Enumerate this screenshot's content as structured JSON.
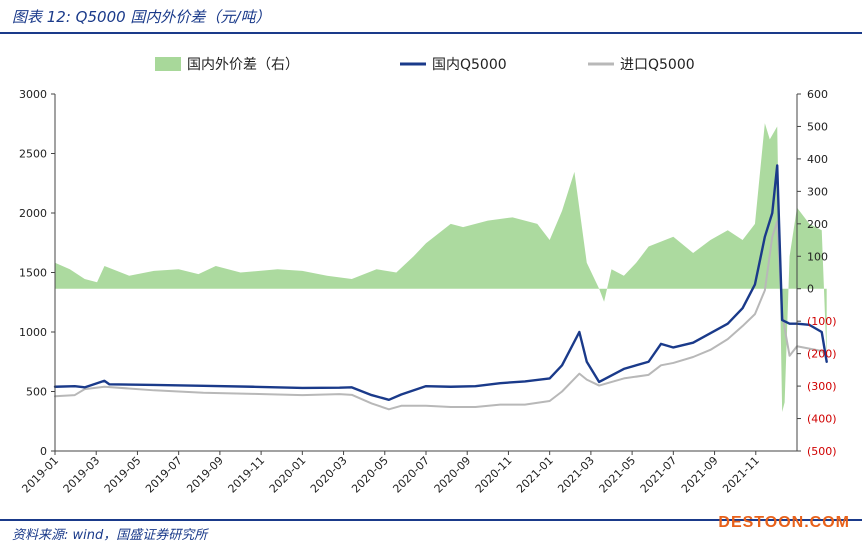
{
  "header": {
    "title": "图表 12:  Q5000 国内外价差（元/吨）"
  },
  "footer": {
    "source": "资料来源:  wind，国盛证券研究所",
    "watermark": "DESTOON.COM"
  },
  "chart_data": {
    "type": "line",
    "title": "图表 12:  Q5000 国内外价差（元/吨）",
    "legend": {
      "placement": "top",
      "entries": [
        "国内外价差（右）",
        "国内Q5000",
        "进口Q5000"
      ]
    },
    "colors": {
      "spread": "#a8d89a",
      "domestic": "#1a3a8a",
      "import": "#b8b8b8",
      "negative_tick": "#d00000"
    },
    "ylim_left": [
      0,
      3000
    ],
    "ylim_right": [
      -500,
      600
    ],
    "yticks_left": [
      "0",
      "500",
      "1000",
      "1500",
      "2000",
      "2500",
      "3000"
    ],
    "yticks_right": [
      "(500)",
      "(400)",
      "(300)",
      "(200)",
      "(100)",
      "0",
      "100",
      "200",
      "300",
      "400",
      "500",
      "600"
    ],
    "xticks": [
      "2019-01",
      "2019-03",
      "2019-05",
      "2019-07",
      "2019-09",
      "2019-11",
      "2020-01",
      "2020-03",
      "2020-05",
      "2020-07",
      "2020-09",
      "2020-11",
      "2021-01",
      "2021-03",
      "2021-05",
      "2021-07",
      "2021-09",
      "2021-11"
    ],
    "x_range": [
      2019.0,
      2022.0
    ],
    "series": [
      {
        "name": "国内外价差（右）",
        "axis": "right",
        "kind": "area",
        "points": [
          [
            2019.0,
            80
          ],
          [
            2019.06,
            60
          ],
          [
            2019.12,
            30
          ],
          [
            2019.17,
            20
          ],
          [
            2019.2,
            70
          ],
          [
            2019.3,
            40
          ],
          [
            2019.4,
            55
          ],
          [
            2019.5,
            60
          ],
          [
            2019.58,
            45
          ],
          [
            2019.65,
            70
          ],
          [
            2019.75,
            50
          ],
          [
            2019.9,
            60
          ],
          [
            2020.0,
            55
          ],
          [
            2020.1,
            40
          ],
          [
            2020.2,
            30
          ],
          [
            2020.3,
            60
          ],
          [
            2020.38,
            50
          ],
          [
            2020.45,
            100
          ],
          [
            2020.5,
            140
          ],
          [
            2020.6,
            200
          ],
          [
            2020.65,
            190
          ],
          [
            2020.75,
            210
          ],
          [
            2020.85,
            220
          ],
          [
            2020.95,
            200
          ],
          [
            2021.0,
            150
          ],
          [
            2021.05,
            240
          ],
          [
            2021.1,
            360
          ],
          [
            2021.15,
            80
          ],
          [
            2021.2,
            0
          ],
          [
            2021.22,
            -40
          ],
          [
            2021.25,
            60
          ],
          [
            2021.3,
            40
          ],
          [
            2021.35,
            80
          ],
          [
            2021.4,
            130
          ],
          [
            2021.5,
            160
          ],
          [
            2021.58,
            110
          ],
          [
            2021.65,
            150
          ],
          [
            2021.72,
            180
          ],
          [
            2021.78,
            150
          ],
          [
            2021.83,
            200
          ],
          [
            2021.87,
            510
          ],
          [
            2021.89,
            460
          ],
          [
            2021.92,
            500
          ],
          [
            2021.94,
            -380
          ],
          [
            2021.95,
            -350
          ],
          [
            2021.97,
            100
          ],
          [
            2022.0,
            250
          ],
          [
            2022.05,
            200
          ],
          [
            2022.1,
            180
          ],
          [
            2022.12,
            -220
          ]
        ]
      },
      {
        "name": "国内Q5000",
        "axis": "left",
        "points": [
          [
            2019.0,
            540
          ],
          [
            2019.08,
            545
          ],
          [
            2019.12,
            535
          ],
          [
            2019.2,
            590
          ],
          [
            2019.22,
            560
          ],
          [
            2019.4,
            555
          ],
          [
            2019.6,
            548
          ],
          [
            2019.8,
            540
          ],
          [
            2020.0,
            530
          ],
          [
            2020.15,
            532
          ],
          [
            2020.2,
            535
          ],
          [
            2020.28,
            470
          ],
          [
            2020.35,
            430
          ],
          [
            2020.4,
            475
          ],
          [
            2020.5,
            545
          ],
          [
            2020.6,
            540
          ],
          [
            2020.7,
            545
          ],
          [
            2020.8,
            570
          ],
          [
            2020.9,
            585
          ],
          [
            2021.0,
            610
          ],
          [
            2021.05,
            720
          ],
          [
            2021.12,
            1000
          ],
          [
            2021.15,
            750
          ],
          [
            2021.2,
            580
          ],
          [
            2021.3,
            690
          ],
          [
            2021.4,
            750
          ],
          [
            2021.45,
            900
          ],
          [
            2021.5,
            870
          ],
          [
            2021.58,
            910
          ],
          [
            2021.65,
            990
          ],
          [
            2021.72,
            1070
          ],
          [
            2021.78,
            1200
          ],
          [
            2021.83,
            1400
          ],
          [
            2021.87,
            1800
          ],
          [
            2021.9,
            2000
          ],
          [
            2021.92,
            2400
          ],
          [
            2021.94,
            1100
          ],
          [
            2021.97,
            1070
          ],
          [
            2022.0,
            1070
          ],
          [
            2022.05,
            1060
          ],
          [
            2022.1,
            1000
          ],
          [
            2022.12,
            750
          ]
        ]
      },
      {
        "name": "进口Q5000",
        "axis": "left",
        "points": [
          [
            2019.0,
            460
          ],
          [
            2019.08,
            470
          ],
          [
            2019.12,
            520
          ],
          [
            2019.2,
            540
          ],
          [
            2019.4,
            510
          ],
          [
            2019.6,
            490
          ],
          [
            2019.8,
            480
          ],
          [
            2020.0,
            470
          ],
          [
            2020.15,
            478
          ],
          [
            2020.2,
            472
          ],
          [
            2020.28,
            400
          ],
          [
            2020.35,
            350
          ],
          [
            2020.4,
            380
          ],
          [
            2020.5,
            380
          ],
          [
            2020.6,
            370
          ],
          [
            2020.7,
            370
          ],
          [
            2020.8,
            390
          ],
          [
            2020.9,
            390
          ],
          [
            2021.0,
            420
          ],
          [
            2021.05,
            500
          ],
          [
            2021.12,
            650
          ],
          [
            2021.15,
            600
          ],
          [
            2021.2,
            550
          ],
          [
            2021.3,
            610
          ],
          [
            2021.4,
            640
          ],
          [
            2021.45,
            720
          ],
          [
            2021.5,
            740
          ],
          [
            2021.58,
            790
          ],
          [
            2021.65,
            850
          ],
          [
            2021.72,
            940
          ],
          [
            2021.78,
            1050
          ],
          [
            2021.83,
            1150
          ],
          [
            2021.87,
            1350
          ],
          [
            2021.9,
            1800
          ],
          [
            2021.92,
            1930
          ],
          [
            2021.94,
            1150
          ],
          [
            2021.97,
            800
          ],
          [
            2022.0,
            880
          ],
          [
            2022.05,
            860
          ],
          [
            2022.1,
            840
          ],
          [
            2022.12,
            800
          ]
        ]
      }
    ]
  }
}
